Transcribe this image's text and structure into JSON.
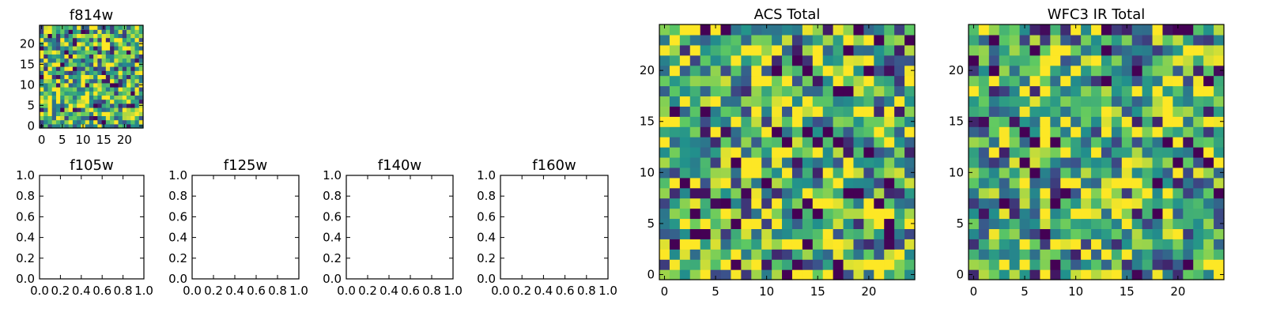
{
  "figure": {
    "colormap": "viridis",
    "colormap_stops": [
      "#440154",
      "#3b528b",
      "#21918c",
      "#5ec962",
      "#fde725"
    ],
    "image_size": 25
  },
  "chart_data": [
    {
      "type": "heatmap",
      "title": "f814w",
      "xlabel": "",
      "ylabel": "",
      "x_ticks": [
        "0",
        "5",
        "10",
        "15",
        "20"
      ],
      "y_ticks": [
        "0",
        "5",
        "10",
        "15",
        "20"
      ],
      "xlim": [
        -0.5,
        24.5
      ],
      "ylim": [
        -0.5,
        24.5
      ],
      "grid": false,
      "seed": 11
    },
    {
      "type": "heatmap",
      "title": "f105w",
      "xlabel": "",
      "ylabel": "",
      "x_ticks": [
        "0.0",
        "0.2",
        "0.4",
        "0.6",
        "0.8",
        "1.0"
      ],
      "y_ticks": [
        "0.0",
        "0.2",
        "0.4",
        "0.6",
        "0.8",
        "1.0"
      ],
      "xlim": [
        0,
        1
      ],
      "ylim": [
        0,
        1
      ],
      "grid": false,
      "empty": true
    },
    {
      "type": "heatmap",
      "title": "f125w",
      "xlabel": "",
      "ylabel": "",
      "x_ticks": [
        "0.0",
        "0.2",
        "0.4",
        "0.6",
        "0.8",
        "1.0"
      ],
      "y_ticks": [
        "0.0",
        "0.2",
        "0.4",
        "0.6",
        "0.8",
        "1.0"
      ],
      "xlim": [
        0,
        1
      ],
      "ylim": [
        0,
        1
      ],
      "grid": false,
      "empty": true
    },
    {
      "type": "heatmap",
      "title": "f140w",
      "xlabel": "",
      "ylabel": "",
      "x_ticks": [
        "0.0",
        "0.2",
        "0.4",
        "0.6",
        "0.8",
        "1.0"
      ],
      "y_ticks": [
        "0.0",
        "0.2",
        "0.4",
        "0.6",
        "0.8",
        "1.0"
      ],
      "xlim": [
        0,
        1
      ],
      "ylim": [
        0,
        1
      ],
      "grid": false,
      "empty": true
    },
    {
      "type": "heatmap",
      "title": "f160w",
      "xlabel": "",
      "ylabel": "",
      "x_ticks": [
        "0.0",
        "0.2",
        "0.4",
        "0.6",
        "0.8",
        "1.0"
      ],
      "y_ticks": [
        "0.0",
        "0.2",
        "0.4",
        "0.6",
        "0.8",
        "1.0"
      ],
      "xlim": [
        0,
        1
      ],
      "ylim": [
        0,
        1
      ],
      "grid": false,
      "empty": true
    },
    {
      "type": "heatmap",
      "title": "ACS Total",
      "xlabel": "",
      "ylabel": "",
      "x_ticks": [
        "0",
        "5",
        "10",
        "15",
        "20"
      ],
      "y_ticks": [
        "0",
        "5",
        "10",
        "15",
        "20"
      ],
      "xlim": [
        -0.5,
        24.5
      ],
      "ylim": [
        -0.5,
        24.5
      ],
      "grid": false,
      "seed": 29
    },
    {
      "type": "heatmap",
      "title": "WFC3 IR Total",
      "xlabel": "",
      "ylabel": "",
      "x_ticks": [
        "0",
        "5",
        "10",
        "15",
        "20"
      ],
      "y_ticks": [
        "0",
        "5",
        "10",
        "15",
        "20"
      ],
      "xlim": [
        -0.5,
        24.5
      ],
      "ylim": [
        -0.5,
        24.5
      ],
      "grid": false,
      "seed": 47
    }
  ]
}
